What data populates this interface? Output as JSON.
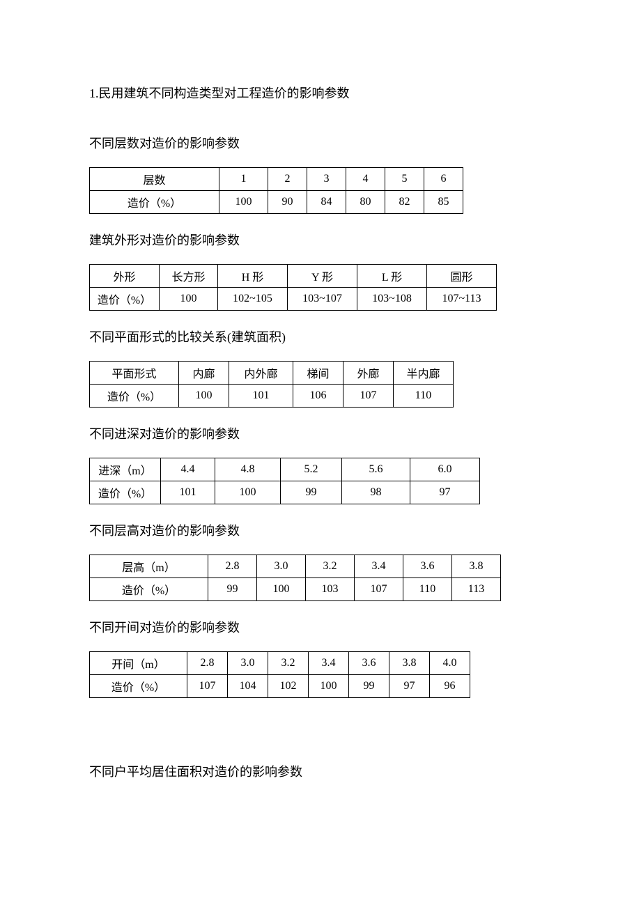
{
  "mainTitle": "1.民用建筑不同构造类型对工程造价的影响参数",
  "section1": {
    "title": "不同层数对造价的影响参数",
    "header": "层数",
    "rowLabel": "造价（%）",
    "cols": [
      "1",
      "2",
      "3",
      "4",
      "5",
      "6"
    ],
    "vals": [
      "100",
      "90",
      "84",
      "80",
      "82",
      "85"
    ]
  },
  "section2": {
    "title": "建筑外形对造价的影响参数",
    "header": "外形",
    "rowLabel": "造价（%）",
    "cols": [
      "长方形",
      "H 形",
      "Y 形",
      "L 形",
      "圆形"
    ],
    "vals": [
      "100",
      "102~105",
      "103~107",
      "103~108",
      "107~113"
    ]
  },
  "section3": {
    "title": "不同平面形式的比较关系(建筑面积)",
    "header": "平面形式",
    "rowLabel": "造价（%）",
    "cols": [
      "内廊",
      "内外廊",
      "梯间",
      "外廊",
      "半内廊"
    ],
    "vals": [
      "100",
      "101",
      "106",
      "107",
      "110"
    ]
  },
  "section4": {
    "title": "不同进深对造价的影响参数",
    "header": "进深（m）",
    "rowLabel": "造价（%）",
    "cols": [
      "4.4",
      "4.8",
      "5.2",
      "5.6",
      "6.0"
    ],
    "vals": [
      "101",
      "100",
      "99",
      "98",
      "97"
    ]
  },
  "section5": {
    "title": "不同层高对造价的影响参数",
    "header": "层高（m）",
    "rowLabel": "造价（%）",
    "cols": [
      "2.8",
      "3.0",
      "3.2",
      "3.4",
      "3.6",
      "3.8"
    ],
    "vals": [
      "99",
      "100",
      "103",
      "107",
      "110",
      "113"
    ]
  },
  "section6": {
    "title": "不同开间对造价的影响参数",
    "header": "开间（m）",
    "rowLabel": "造价（%）",
    "cols": [
      "2.8",
      "3.0",
      "3.2",
      "3.4",
      "3.6",
      "3.8",
      "4.0"
    ],
    "vals": [
      "107",
      "104",
      "102",
      "100",
      "99",
      "97",
      "96"
    ]
  },
  "section7": {
    "title": "不同户平均居住面积对造价的影响参数"
  }
}
